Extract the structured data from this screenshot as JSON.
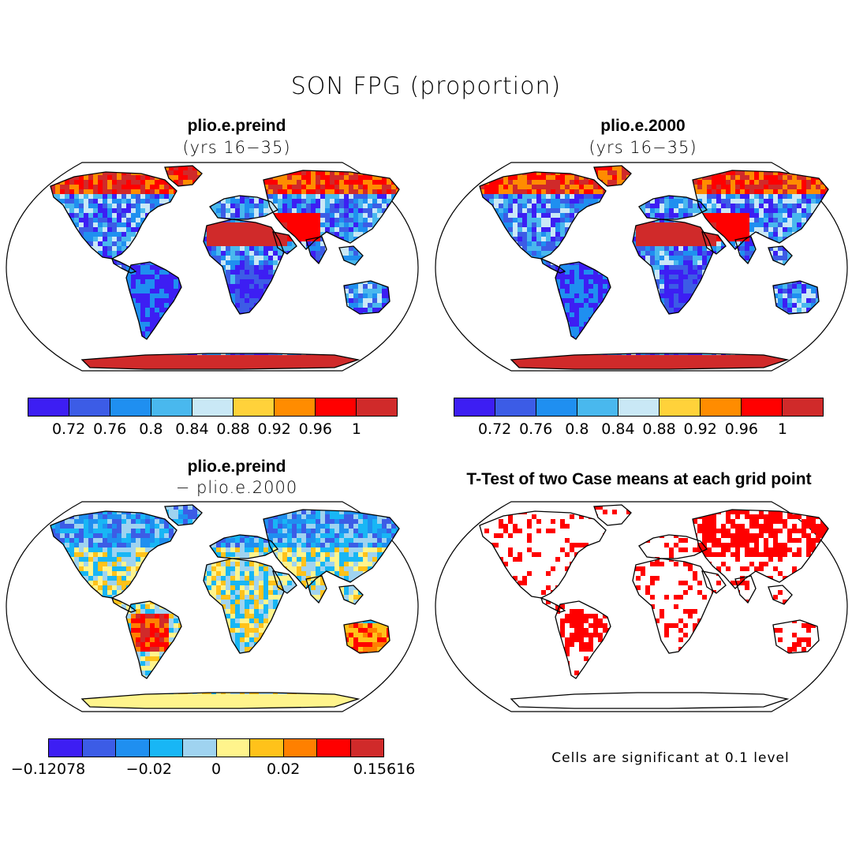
{
  "figure": {
    "title": "SON FPG (proportion)",
    "note": "Cells are significant at 0.1 level"
  },
  "panels": [
    {
      "title": "plio.e.preind",
      "subtitle": "(yrs 16−35)"
    },
    {
      "title": "plio.e.2000",
      "subtitle": "(yrs 16−35)"
    },
    {
      "title": "plio.e.preind",
      "subtitle": "− plio.e.2000"
    },
    {
      "title": "T-Test of two Case means at each grid point",
      "subtitle": ""
    }
  ],
  "colorbar_abs": {
    "colors": [
      "#3d1ef3",
      "#3c5ce6",
      "#1f8ff0",
      "#49b8ee",
      "#c9e8f6",
      "#ffd23a",
      "#ff8c00",
      "#ff0000",
      "#d02a2a"
    ],
    "labels": [
      "0.72",
      "0.76",
      "0.8",
      "0.84",
      "0.88",
      "0.92",
      "0.96",
      "1"
    ]
  },
  "colorbar_diff": {
    "colors": [
      "#3d1ef3",
      "#3c5ce6",
      "#1f8ff0",
      "#18b6f5",
      "#9fd3f0",
      "#fff48c",
      "#ffc21a",
      "#ff8000",
      "#ff0000",
      "#d02a2a"
    ],
    "labels": [
      "−0.12078",
      "−0.02",
      "0",
      "0.02",
      "0.15616"
    ]
  },
  "colors": {
    "land_outline": "#000000",
    "significant": "#ff0000"
  }
}
